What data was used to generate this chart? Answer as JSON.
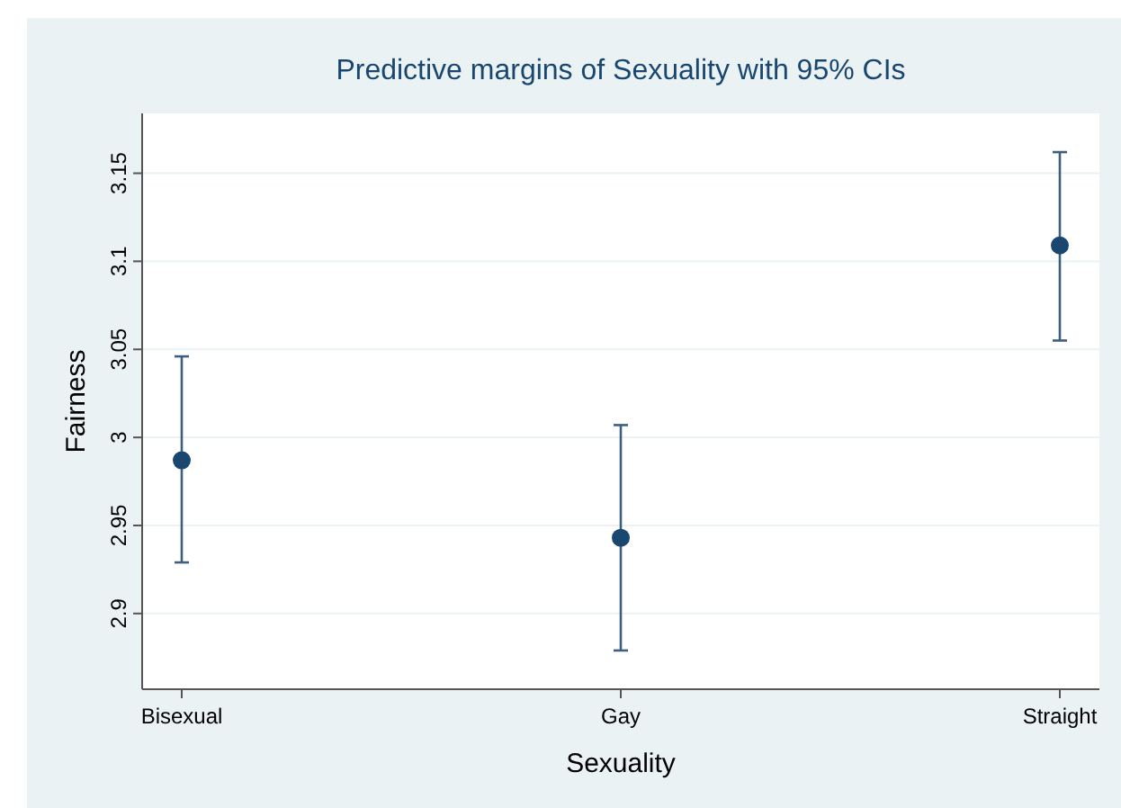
{
  "chart_data": {
    "type": "scatter",
    "title": "Predictive margins of Sexuality with 95% CIs",
    "xlabel": "Sexuality",
    "ylabel": "Fairness",
    "categories": [
      "Bisexual",
      "Gay",
      "Straight"
    ],
    "values": [
      2.987,
      2.943,
      3.109
    ],
    "errors": [
      [
        2.929,
        3.046
      ],
      [
        2.879,
        3.007
      ],
      [
        3.055,
        3.162
      ]
    ],
    "color": "#1a476f",
    "marker": "circle",
    "grid": "y",
    "ylim": [
      2.857,
      3.184
    ],
    "yticks": [
      2.9,
      2.95,
      3,
      3.05,
      3.1,
      3.15
    ]
  }
}
